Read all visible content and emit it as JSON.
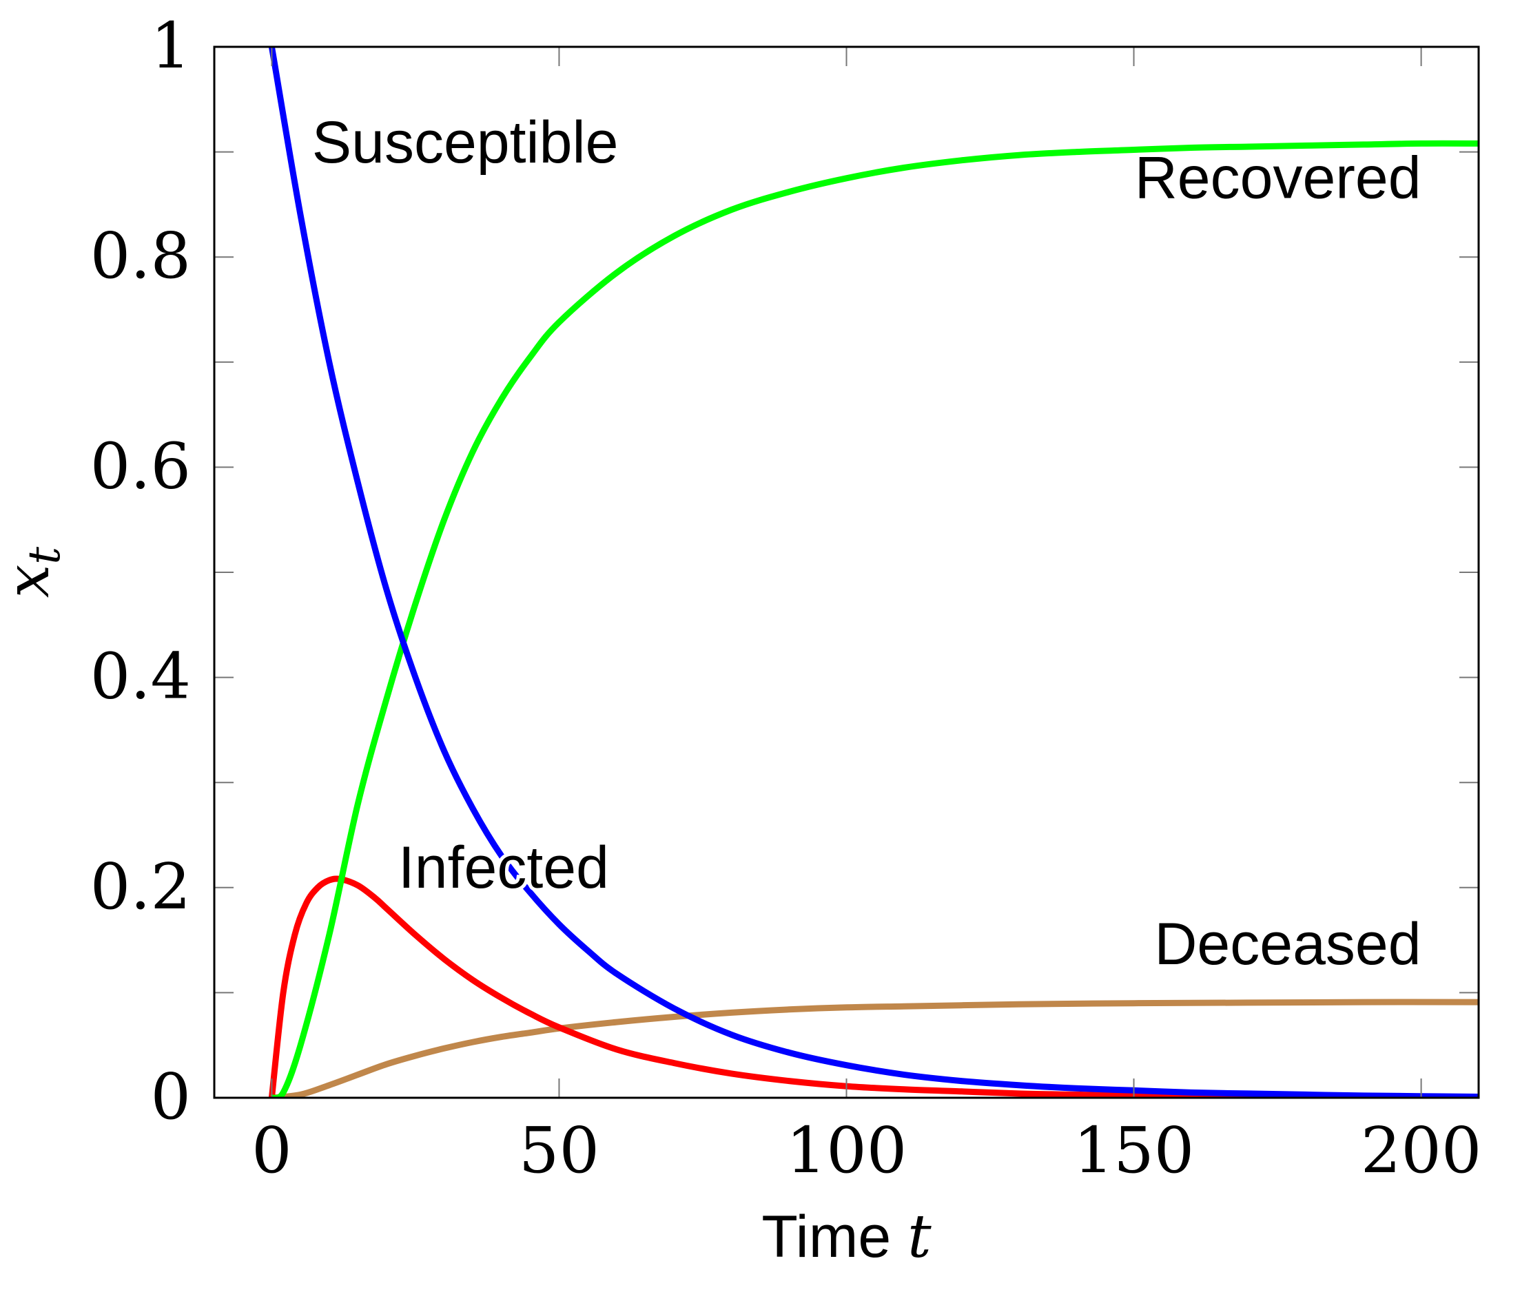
{
  "chart_data": {
    "type": "line",
    "xlabel": {
      "text": "Time ",
      "var": "t"
    },
    "ylabel": {
      "var": "x",
      "sub": "t"
    },
    "xlim": [
      -10,
      210
    ],
    "ylim": [
      0,
      1
    ],
    "x_ticks": [
      0,
      50,
      100,
      150,
      200
    ],
    "x_tick_labels": [
      "0",
      "50",
      "100",
      "150",
      "200"
    ],
    "y_ticks": [
      0,
      0.2,
      0.4,
      0.6,
      0.8,
      1
    ],
    "y_tick_labels": [
      "0",
      "0.2",
      "0.4",
      "0.6",
      "0.8",
      "1"
    ],
    "grid": false,
    "legend": "none",
    "series": [
      {
        "name": "Susceptible",
        "color": "#0000ff",
        "x": [
          0,
          5,
          10,
          15,
          20,
          25,
          30,
          35,
          40,
          45,
          50,
          55,
          60,
          70,
          80,
          90,
          100,
          110,
          120,
          130,
          140,
          150,
          160,
          170,
          180,
          190,
          200,
          210
        ],
        "y": [
          1.0,
          0.84,
          0.7,
          0.585,
          0.483,
          0.4,
          0.33,
          0.275,
          0.23,
          0.195,
          0.165,
          0.14,
          0.118,
          0.085,
          0.06,
          0.043,
          0.031,
          0.022,
          0.016,
          0.012,
          0.009,
          0.007,
          0.005,
          0.004,
          0.003,
          0.002,
          0.0015,
          0.001
        ]
      },
      {
        "name": "Infected",
        "color": "#ff0000",
        "x": [
          0,
          2,
          4,
          6,
          8,
          10,
          12,
          15,
          18,
          20,
          25,
          30,
          35,
          40,
          45,
          50,
          60,
          70,
          80,
          90,
          100,
          110,
          120,
          130,
          140,
          150,
          170,
          190,
          210
        ],
        "y": [
          0.0,
          0.1,
          0.155,
          0.185,
          0.2,
          0.207,
          0.208,
          0.202,
          0.19,
          0.18,
          0.155,
          0.132,
          0.112,
          0.095,
          0.08,
          0.067,
          0.046,
          0.033,
          0.023,
          0.016,
          0.011,
          0.008,
          0.006,
          0.004,
          0.003,
          0.002,
          0.0015,
          0.001,
          0.0005
        ]
      },
      {
        "name": "Recovered",
        "color": "#00ff00",
        "x": [
          0,
          2,
          5,
          10,
          15,
          20,
          25,
          30,
          35,
          40,
          45,
          50,
          60,
          70,
          80,
          90,
          100,
          110,
          120,
          130,
          140,
          150,
          160,
          170,
          180,
          190,
          200,
          210
        ],
        "y": [
          0.0,
          0.005,
          0.05,
          0.155,
          0.28,
          0.38,
          0.47,
          0.55,
          0.615,
          0.665,
          0.705,
          0.738,
          0.785,
          0.82,
          0.845,
          0.862,
          0.875,
          0.885,
          0.892,
          0.897,
          0.9,
          0.902,
          0.904,
          0.905,
          0.906,
          0.907,
          0.908,
          0.908
        ]
      },
      {
        "name": "Deceased",
        "color": "#c0874b",
        "x": [
          0,
          5,
          10,
          15,
          20,
          25,
          30,
          35,
          40,
          45,
          50,
          60,
          70,
          80,
          90,
          100,
          110,
          120,
          130,
          150,
          170,
          190,
          210
        ],
        "y": [
          0.0,
          0.003,
          0.012,
          0.022,
          0.032,
          0.04,
          0.047,
          0.053,
          0.058,
          0.062,
          0.066,
          0.072,
          0.077,
          0.081,
          0.084,
          0.086,
          0.087,
          0.088,
          0.089,
          0.09,
          0.0905,
          0.091,
          0.091
        ]
      }
    ],
    "annotations": [
      {
        "text": "Susceptible",
        "x": 7,
        "y": 0.89,
        "anchor": "start"
      },
      {
        "text": "Recovered",
        "x": 200,
        "y": 0.856,
        "anchor": "end"
      },
      {
        "text": "Infected",
        "x": 22,
        "y": 0.2,
        "anchor": "start"
      },
      {
        "text": "Deceased",
        "x": 200,
        "y": 0.127,
        "anchor": "end"
      }
    ]
  }
}
